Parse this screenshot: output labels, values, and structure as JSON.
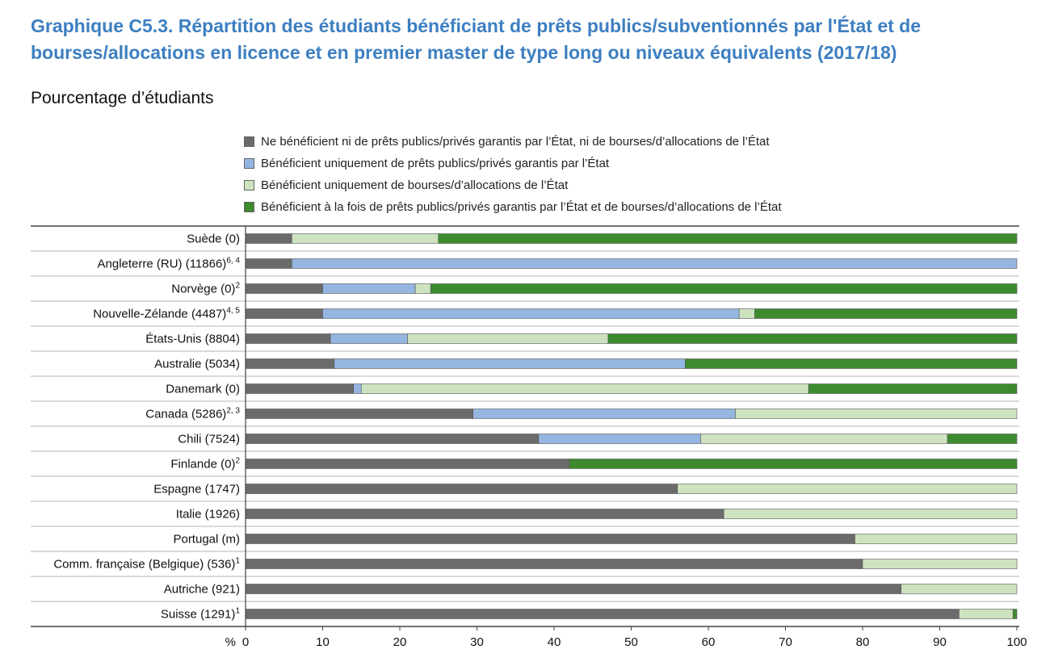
{
  "chart_data": {
    "type": "bar",
    "orientation": "horizontal",
    "stacked": true,
    "title": "Graphique C5.3. Répartition des étudiants bénéficiant de prêts publics/subventionnés par l'État et de bourses/allocations en licence et en premier master de type long ou niveaux équivalents (2017/18)",
    "subtitle": "Pourcentage d’étudiants",
    "xlabel": "%",
    "xlim": [
      0,
      100
    ],
    "xticks": [
      0,
      10,
      20,
      30,
      40,
      50,
      60,
      70,
      80,
      90,
      100
    ],
    "categories": [
      {
        "name": "Suède (0)",
        "sup": ""
      },
      {
        "name": "Angleterre (RU) (11866)",
        "sup": "6, 4"
      },
      {
        "name": "Norvège (0)",
        "sup": "2"
      },
      {
        "name": "Nouvelle-Zélande (4487)",
        "sup": "4, 5"
      },
      {
        "name": "États-Unis (8804)",
        "sup": ""
      },
      {
        "name": "Australie (5034)",
        "sup": ""
      },
      {
        "name": "Danemark (0)",
        "sup": ""
      },
      {
        "name": "Canada (5286)",
        "sup": "2, 3"
      },
      {
        "name": "Chili (7524)",
        "sup": ""
      },
      {
        "name": "Finlande (0)",
        "sup": "2"
      },
      {
        "name": "Espagne (1747)",
        "sup": ""
      },
      {
        "name": "Italie (1926)",
        "sup": ""
      },
      {
        "name": "Portugal (m)",
        "sup": ""
      },
      {
        "name": "Comm. française (Belgique) (536)",
        "sup": "1"
      },
      {
        "name": "Autriche (921)",
        "sup": ""
      },
      {
        "name": "Suisse (1291)",
        "sup": "1"
      }
    ],
    "series": [
      {
        "name": "Ne bénéficient ni de prêts publics/privés garantis par l’État, ni de bourses/d’allocations de l’État",
        "color": "#6b6b6b",
        "values": [
          6,
          6,
          10,
          10,
          11,
          11.5,
          14,
          29.5,
          38,
          42,
          56,
          62,
          79,
          80,
          85,
          92.5
        ]
      },
      {
        "name": "Bénéficient uniquement de prêts publics/privés garantis par l’État",
        "color": "#94b6e0",
        "values": [
          0,
          94,
          12,
          54,
          10,
          45.5,
          1,
          34,
          21,
          0,
          0,
          0,
          0,
          0,
          0,
          0
        ]
      },
      {
        "name": "Bénéficient uniquement de bourses/d’allocations de l’État",
        "color": "#cde3bf",
        "values": [
          19,
          0,
          2,
          2,
          26,
          0,
          58,
          36.5,
          32,
          0,
          44,
          38,
          21,
          20,
          15,
          7
        ]
      },
      {
        "name": "Bénéficient à la fois de prêts publics/privés garantis par l’État et de bourses/d’allocations de l’État",
        "color": "#3d8b2e",
        "values": [
          75,
          0,
          76,
          34,
          53,
          43,
          27,
          0,
          9,
          58,
          0,
          0,
          0,
          0,
          0,
          0.5
        ]
      }
    ]
  }
}
